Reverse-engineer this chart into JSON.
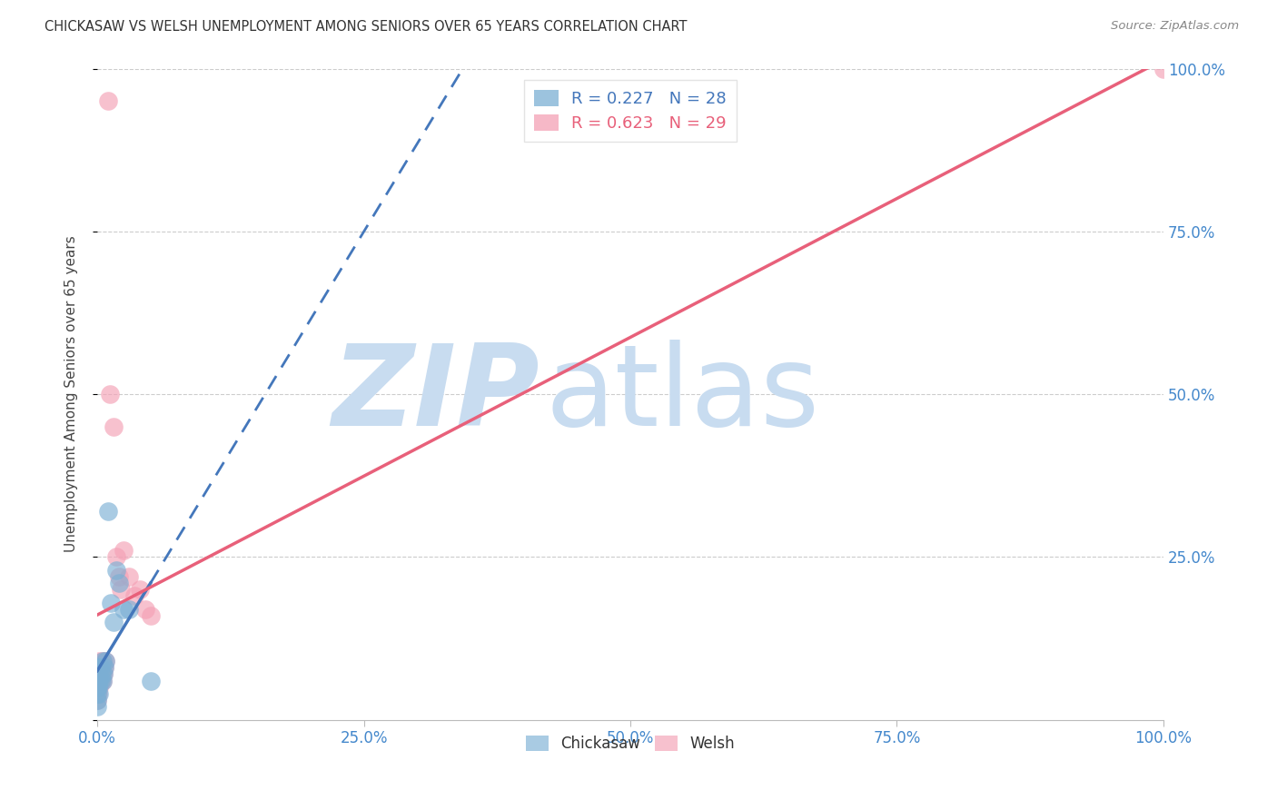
{
  "title": "CHICKASAW VS WELSH UNEMPLOYMENT AMONG SENIORS OVER 65 YEARS CORRELATION CHART",
  "source": "Source: ZipAtlas.com",
  "ylabel": "Unemployment Among Seniors over 65 years",
  "chickasaw_R": 0.227,
  "chickasaw_N": 28,
  "welsh_R": 0.623,
  "welsh_N": 29,
  "chickasaw_color": "#7BAFD4",
  "welsh_color": "#F4A0B5",
  "chickasaw_trend_color": "#4477BB",
  "welsh_trend_color": "#E8607A",
  "background_color": "#FFFFFF",
  "watermark_zip": "ZIP",
  "watermark_atlas": "atlas",
  "watermark_color_zip": "#C8DCF0",
  "watermark_color_atlas": "#C8DCF0",
  "xlim": [
    0.0,
    1.0
  ],
  "ylim": [
    0.0,
    1.0
  ],
  "xticks": [
    0.0,
    0.25,
    0.5,
    0.75,
    1.0
  ],
  "xticklabels": [
    "0.0%",
    "25.0%",
    "50.0%",
    "75.0%",
    "100.0%"
  ],
  "yticks_right": [
    0.0,
    0.25,
    0.5,
    0.75,
    1.0
  ],
  "yticklabels_right": [
    "",
    "25.0%",
    "50.0%",
    "75.0%",
    "100.0%"
  ],
  "chickasaw_x": [
    0.0,
    0.0,
    0.0,
    0.0,
    0.0,
    0.001,
    0.001,
    0.001,
    0.001,
    0.002,
    0.002,
    0.002,
    0.003,
    0.003,
    0.004,
    0.005,
    0.005,
    0.006,
    0.007,
    0.008,
    0.01,
    0.013,
    0.015,
    0.018,
    0.02,
    0.025,
    0.03,
    0.05
  ],
  "chickasaw_y": [
    0.02,
    0.03,
    0.04,
    0.05,
    0.06,
    0.05,
    0.06,
    0.07,
    0.08,
    0.04,
    0.06,
    0.08,
    0.06,
    0.08,
    0.07,
    0.06,
    0.09,
    0.07,
    0.08,
    0.09,
    0.32,
    0.18,
    0.15,
    0.23,
    0.21,
    0.17,
    0.17,
    0.06
  ],
  "welsh_x": [
    0.0,
    0.0,
    0.001,
    0.001,
    0.001,
    0.002,
    0.002,
    0.002,
    0.003,
    0.003,
    0.004,
    0.005,
    0.005,
    0.006,
    0.007,
    0.008,
    0.01,
    0.012,
    0.015,
    0.018,
    0.02,
    0.022,
    0.025,
    0.03,
    0.035,
    0.04,
    0.045,
    0.05,
    1.0
  ],
  "welsh_y": [
    0.03,
    0.05,
    0.04,
    0.06,
    0.08,
    0.05,
    0.07,
    0.09,
    0.06,
    0.08,
    0.07,
    0.06,
    0.09,
    0.07,
    0.08,
    0.09,
    0.95,
    0.5,
    0.45,
    0.25,
    0.22,
    0.2,
    0.26,
    0.22,
    0.19,
    0.2,
    0.17,
    0.16,
    1.0
  ]
}
